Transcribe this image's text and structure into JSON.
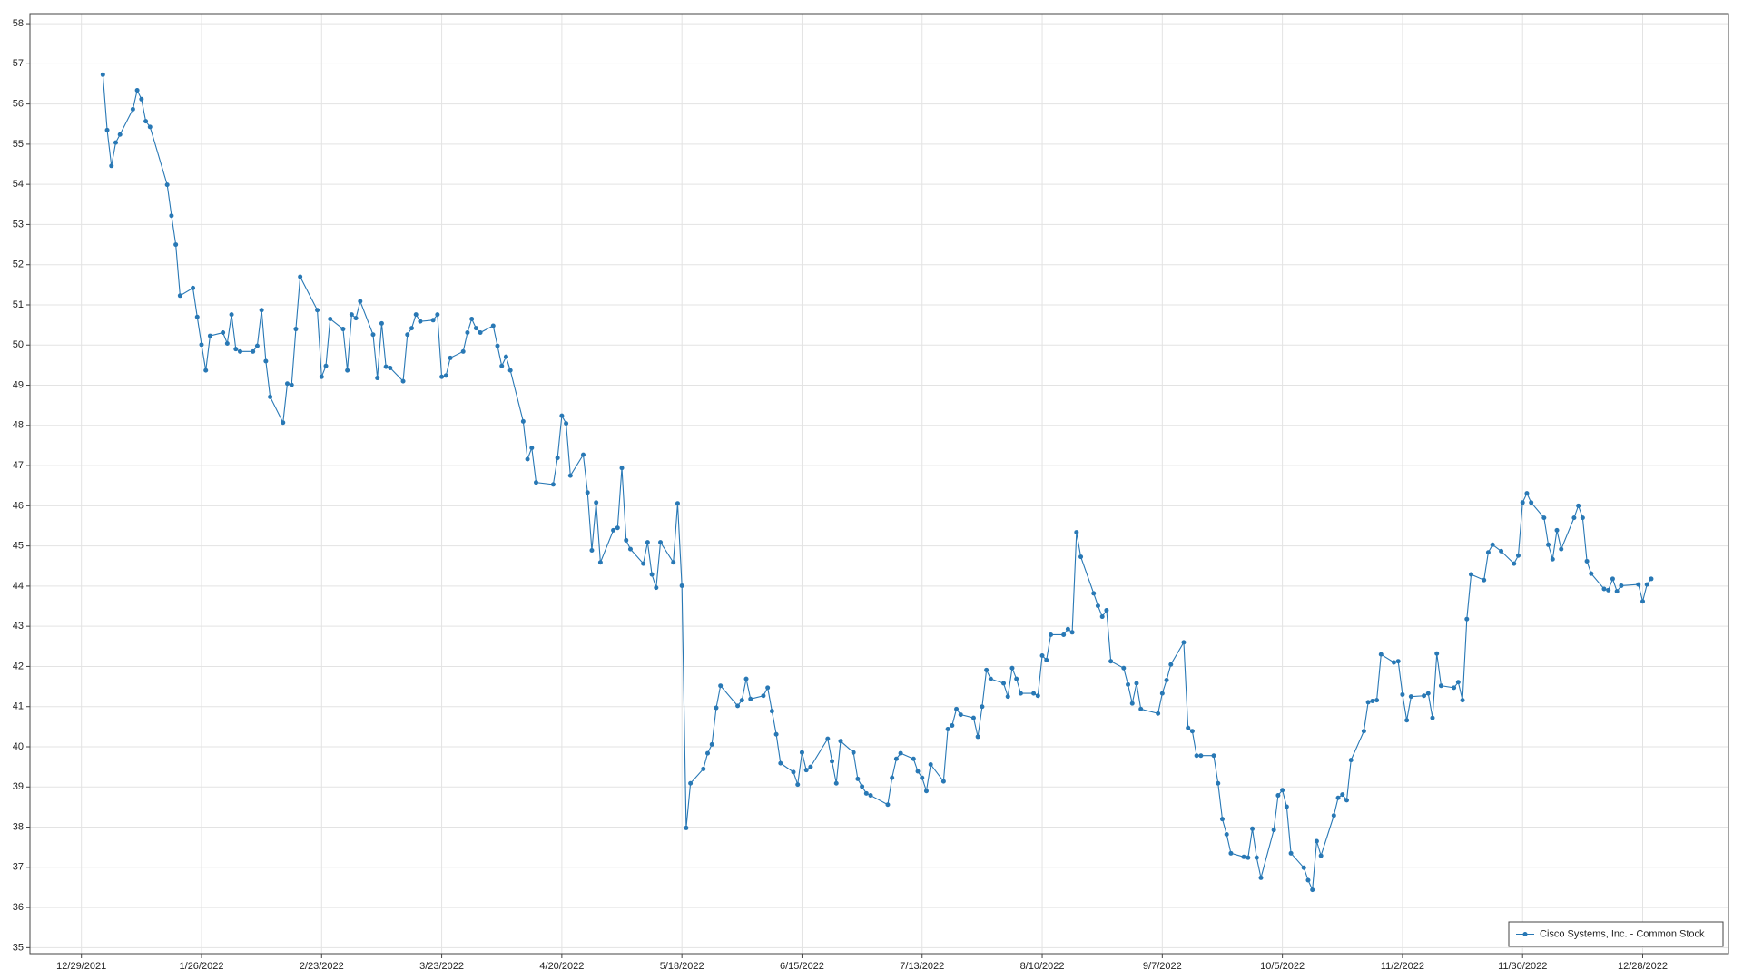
{
  "chart_data": {
    "type": "line",
    "x": [
      "1/3/2022",
      "1/4/2022",
      "1/5/2022",
      "1/6/2022",
      "1/7/2022",
      "1/10/2022",
      "1/11/2022",
      "1/12/2022",
      "1/13/2022",
      "1/14/2022",
      "1/18/2022",
      "1/19/2022",
      "1/20/2022",
      "1/21/2022",
      "1/24/2022",
      "1/25/2022",
      "1/26/2022",
      "1/27/2022",
      "1/28/2022",
      "1/31/2022",
      "2/1/2022",
      "2/2/2022",
      "2/3/2022",
      "2/4/2022",
      "2/7/2022",
      "2/8/2022",
      "2/9/2022",
      "2/10/2022",
      "2/11/2022",
      "2/14/2022",
      "2/15/2022",
      "2/16/2022",
      "2/17/2022",
      "2/18/2022",
      "2/22/2022",
      "2/23/2022",
      "2/24/2022",
      "2/25/2022",
      "2/28/2022",
      "3/1/2022",
      "3/2/2022",
      "3/3/2022",
      "3/4/2022",
      "3/7/2022",
      "3/8/2022",
      "3/9/2022",
      "3/10/2022",
      "3/11/2022",
      "3/14/2022",
      "3/15/2022",
      "3/16/2022",
      "3/17/2022",
      "3/18/2022",
      "3/21/2022",
      "3/22/2022",
      "3/23/2022",
      "3/24/2022",
      "3/25/2022",
      "3/28/2022",
      "3/29/2022",
      "3/30/2022",
      "3/31/2022",
      "4/1/2022",
      "4/4/2022",
      "4/5/2022",
      "4/6/2022",
      "4/7/2022",
      "4/8/2022",
      "4/11/2022",
      "4/12/2022",
      "4/13/2022",
      "4/14/2022",
      "4/18/2022",
      "4/19/2022",
      "4/20/2022",
      "4/21/2022",
      "4/22/2022",
      "4/25/2022",
      "4/26/2022",
      "4/27/2022",
      "4/28/2022",
      "4/29/2022",
      "5/2/2022",
      "5/3/2022",
      "5/4/2022",
      "5/5/2022",
      "5/6/2022",
      "5/9/2022",
      "5/10/2022",
      "5/11/2022",
      "5/12/2022",
      "5/13/2022",
      "5/16/2022",
      "5/17/2022",
      "5/18/2022",
      "5/19/2022",
      "5/20/2022",
      "5/23/2022",
      "5/24/2022",
      "5/25/2022",
      "5/26/2022",
      "5/27/2022",
      "5/31/2022",
      "6/1/2022",
      "6/2/2022",
      "6/3/2022",
      "6/6/2022",
      "6/7/2022",
      "6/8/2022",
      "6/9/2022",
      "6/10/2022",
      "6/13/2022",
      "6/14/2022",
      "6/15/2022",
      "6/16/2022",
      "6/17/2022",
      "6/21/2022",
      "6/22/2022",
      "6/23/2022",
      "6/24/2022",
      "6/27/2022",
      "6/28/2022",
      "6/29/2022",
      "6/30/2022",
      "7/1/2022",
      "7/5/2022",
      "7/6/2022",
      "7/7/2022",
      "7/8/2022",
      "7/11/2022",
      "7/12/2022",
      "7/13/2022",
      "7/14/2022",
      "7/15/2022",
      "7/18/2022",
      "7/19/2022",
      "7/20/2022",
      "7/21/2022",
      "7/22/2022",
      "7/25/2022",
      "7/26/2022",
      "7/27/2022",
      "7/28/2022",
      "7/29/2022",
      "8/1/2022",
      "8/2/2022",
      "8/3/2022",
      "8/4/2022",
      "8/5/2022",
      "8/8/2022",
      "8/9/2022",
      "8/10/2022",
      "8/11/2022",
      "8/12/2022",
      "8/15/2022",
      "8/16/2022",
      "8/17/2022",
      "8/18/2022",
      "8/19/2022",
      "8/22/2022",
      "8/23/2022",
      "8/24/2022",
      "8/25/2022",
      "8/26/2022",
      "8/29/2022",
      "8/30/2022",
      "8/31/2022",
      "9/1/2022",
      "9/2/2022",
      "9/6/2022",
      "9/7/2022",
      "9/8/2022",
      "9/9/2022",
      "9/12/2022",
      "9/13/2022",
      "9/14/2022",
      "9/15/2022",
      "9/16/2022",
      "9/19/2022",
      "9/20/2022",
      "9/21/2022",
      "9/22/2022",
      "9/23/2022",
      "9/26/2022",
      "9/27/2022",
      "9/28/2022",
      "9/29/2022",
      "9/30/2022",
      "10/3/2022",
      "10/4/2022",
      "10/5/2022",
      "10/6/2022",
      "10/7/2022",
      "10/10/2022",
      "10/11/2022",
      "10/12/2022",
      "10/13/2022",
      "10/14/2022",
      "10/17/2022",
      "10/18/2022",
      "10/19/2022",
      "10/20/2022",
      "10/21/2022",
      "10/24/2022",
      "10/25/2022",
      "10/26/2022",
      "10/27/2022",
      "10/28/2022",
      "10/31/2022",
      "11/1/2022",
      "11/2/2022",
      "11/3/2022",
      "11/4/2022",
      "11/7/2022",
      "11/8/2022",
      "11/9/2022",
      "11/10/2022",
      "11/11/2022",
      "11/14/2022",
      "11/15/2022",
      "11/16/2022",
      "11/17/2022",
      "11/18/2022",
      "11/21/2022",
      "11/22/2022",
      "11/23/2022",
      "11/25/2022",
      "11/28/2022",
      "11/29/2022",
      "11/30/2022",
      "12/1/2022",
      "12/2/2022",
      "12/5/2022",
      "12/6/2022",
      "12/7/2022",
      "12/8/2022",
      "12/9/2022",
      "12/12/2022",
      "12/13/2022",
      "12/14/2022",
      "12/15/2022",
      "12/16/2022",
      "12/19/2022",
      "12/20/2022",
      "12/21/2022",
      "12/22/2022",
      "12/23/2022",
      "12/27/2022",
      "12/28/2022",
      "12/29/2022",
      "12/30/2022"
    ],
    "series": [
      {
        "name": "Cisco Systems, Inc. - Common Stock",
        "color": "#2878b5",
        "values": [
          56.73,
          55.35,
          54.46,
          55.04,
          55.24,
          55.87,
          56.34,
          56.12,
          55.57,
          55.43,
          53.99,
          53.22,
          52.5,
          51.23,
          51.42,
          50.7,
          50.01,
          49.37,
          50.23,
          50.31,
          50.04,
          50.76,
          49.9,
          49.84,
          49.84,
          49.98,
          50.87,
          49.6,
          48.71,
          48.07,
          49.04,
          49.01,
          50.4,
          51.7,
          50.87,
          49.21,
          49.48,
          50.65,
          50.4,
          49.37,
          50.76,
          50.67,
          51.09,
          50.26,
          49.18,
          50.54,
          49.46,
          49.43,
          49.1,
          50.26,
          50.42,
          50.76,
          50.59,
          50.62,
          50.76,
          49.21,
          49.24,
          49.68,
          49.84,
          50.31,
          50.65,
          50.42,
          50.31,
          50.48,
          49.98,
          49.48,
          49.71,
          49.37,
          48.1,
          47.16,
          47.44,
          46.58,
          46.53,
          47.19,
          48.24,
          48.05,
          46.75,
          47.27,
          46.33,
          44.89,
          46.08,
          44.59,
          45.39,
          45.45,
          46.94,
          45.14,
          44.92,
          44.56,
          45.09,
          44.29,
          43.96,
          45.09,
          44.59,
          46.06,
          44.01,
          37.98,
          39.09,
          39.45,
          39.84,
          40.06,
          40.97,
          41.52,
          41.02,
          41.16,
          41.69,
          41.19,
          41.27,
          41.47,
          40.89,
          40.31,
          39.59,
          39.37,
          39.06,
          39.86,
          39.42,
          39.5,
          40.2,
          39.64,
          39.09,
          40.14,
          39.86,
          39.2,
          39.01,
          38.84,
          38.79,
          38.56,
          39.23,
          39.7,
          39.84,
          39.7,
          39.39,
          39.23,
          38.9,
          39.56,
          39.14,
          40.44,
          40.53,
          40.94,
          40.8,
          40.72,
          40.25,
          41.0,
          41.91,
          41.69,
          41.58,
          41.25,
          41.96,
          41.69,
          41.33,
          41.33,
          41.27,
          42.27,
          42.16,
          42.79,
          42.79,
          42.93,
          42.85,
          45.34,
          44.73,
          43.82,
          43.51,
          43.24,
          43.4,
          42.13,
          41.96,
          41.55,
          41.08,
          41.58,
          40.94,
          40.83,
          41.33,
          41.66,
          42.05,
          42.6,
          40.47,
          40.39,
          39.78,
          39.78,
          39.78,
          39.09,
          38.2,
          37.82,
          37.35,
          37.26,
          37.24,
          37.96,
          37.24,
          36.74,
          37.93,
          38.79,
          38.92,
          38.51,
          37.35,
          36.99,
          36.68,
          36.44,
          37.65,
          37.29,
          38.29,
          38.73,
          38.81,
          38.67,
          39.67,
          40.39,
          41.11,
          41.14,
          41.16,
          42.3,
          42.1,
          42.13,
          41.3,
          40.66,
          41.25,
          41.27,
          41.33,
          40.72,
          42.32,
          41.52,
          41.47,
          41.61,
          41.16,
          43.18,
          44.29,
          44.15,
          44.84,
          45.03,
          44.87,
          44.56,
          44.76,
          46.08,
          46.31,
          46.08,
          45.7,
          45.03,
          44.67,
          45.39,
          44.92,
          45.7,
          46.0,
          45.7,
          44.62,
          44.31,
          43.93,
          43.9,
          44.18,
          43.87,
          44.01,
          44.04,
          43.62,
          44.04,
          44.18
        ]
      }
    ],
    "xlim": [
      "12/17/2021",
      "1/17/2023"
    ],
    "xticks": [
      "12/29/2021",
      "1/26/2022",
      "2/23/2022",
      "3/23/2022",
      "4/20/2022",
      "5/18/2022",
      "6/15/2022",
      "7/13/2022",
      "8/10/2022",
      "9/7/2022",
      "10/5/2022",
      "11/2/2022",
      "11/30/2022",
      "12/28/2022"
    ],
    "ylim": [
      34.85,
      58.25
    ],
    "yticks": [
      35,
      36,
      37,
      38,
      39,
      40,
      41,
      42,
      43,
      44,
      45,
      46,
      47,
      48,
      49,
      50,
      51,
      52,
      53,
      54,
      55,
      56,
      57,
      58
    ],
    "grid": true,
    "legend": "lower right"
  }
}
